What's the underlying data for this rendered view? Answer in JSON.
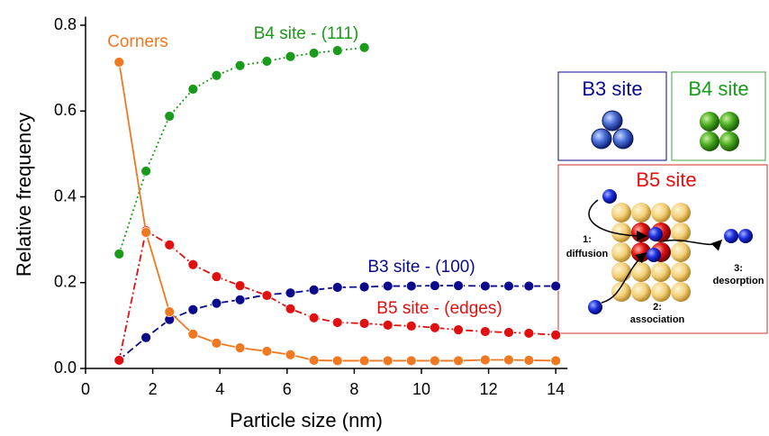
{
  "chart_data": {
    "type": "line",
    "x_label": "Particle size (nm)",
    "y_label": "Relative frequency",
    "xlim": [
      0,
      14.35
    ],
    "ylim": [
      0,
      0.82
    ],
    "xticks": [
      0,
      2,
      4,
      6,
      8,
      10,
      12,
      14
    ],
    "yticks": [
      {
        "value": 0,
        "label": "0.0"
      },
      0.2,
      0.4,
      0.6,
      0.8
    ],
    "series": [
      {
        "name": "B4 site - (111)",
        "color": "#1a9a1a",
        "dash": "dotted",
        "x": [
          1.0,
          1.8,
          2.5,
          3.2,
          3.9,
          4.6,
          5.4,
          6.1,
          6.8,
          7.5,
          8.3
        ],
        "values": [
          0.267,
          0.46,
          0.588,
          0.651,
          0.683,
          0.706,
          0.716,
          0.727,
          0.735,
          0.741,
          0.748
        ]
      },
      {
        "name": "B3 site - (100)",
        "color": "#0a0a8a",
        "dash": "dashed",
        "x": [
          1.0,
          1.8,
          2.5,
          3.2,
          3.9,
          4.6,
          5.4,
          6.1,
          6.8,
          7.5,
          8.3,
          9.0,
          9.7,
          10.4,
          11.1,
          11.9,
          12.6,
          13.2,
          14.0
        ],
        "values": [
          0.02,
          0.072,
          0.114,
          0.137,
          0.152,
          0.16,
          0.172,
          0.176,
          0.183,
          0.189,
          0.19,
          0.192,
          0.192,
          0.193,
          0.193,
          0.192,
          0.192,
          0.192,
          0.192
        ]
      },
      {
        "name": "B5 site - (edges)",
        "color": "#e01010",
        "dash": "dashdot",
        "x": [
          1.0,
          1.8,
          2.5,
          3.2,
          3.9,
          4.6,
          5.4,
          6.1,
          6.8,
          7.5,
          8.3,
          9.0,
          9.7,
          10.4,
          11.1,
          11.9,
          12.6,
          13.2,
          14.0
        ],
        "values": [
          0.019,
          0.321,
          0.288,
          0.242,
          0.214,
          0.193,
          0.17,
          0.139,
          0.118,
          0.107,
          0.105,
          0.101,
          0.099,
          0.095,
          0.09,
          0.086,
          0.084,
          0.082,
          0.078
        ]
      },
      {
        "name": "Corners",
        "color": "#f07820",
        "dash": "solid",
        "x": [
          1.0,
          1.8,
          2.5,
          3.2,
          3.9,
          4.6,
          5.4,
          6.1,
          6.8,
          7.5,
          8.3,
          9.0,
          9.7,
          10.4,
          11.1,
          11.9,
          12.6,
          13.2,
          14.0
        ],
        "values": [
          0.714,
          0.317,
          0.132,
          0.08,
          0.059,
          0.048,
          0.04,
          0.032,
          0.019,
          0.018,
          0.018,
          0.018,
          0.018,
          0.018,
          0.018,
          0.02,
          0.02,
          0.019,
          0.018
        ]
      }
    ]
  },
  "inset": {
    "b3_title": "B3 site",
    "b4_title": "B4 site",
    "b5_title": "B5 site",
    "step1": [
      "1:",
      "diffusion"
    ],
    "step2": [
      "2:",
      "association"
    ],
    "step3": [
      "3:",
      "desorption"
    ]
  }
}
